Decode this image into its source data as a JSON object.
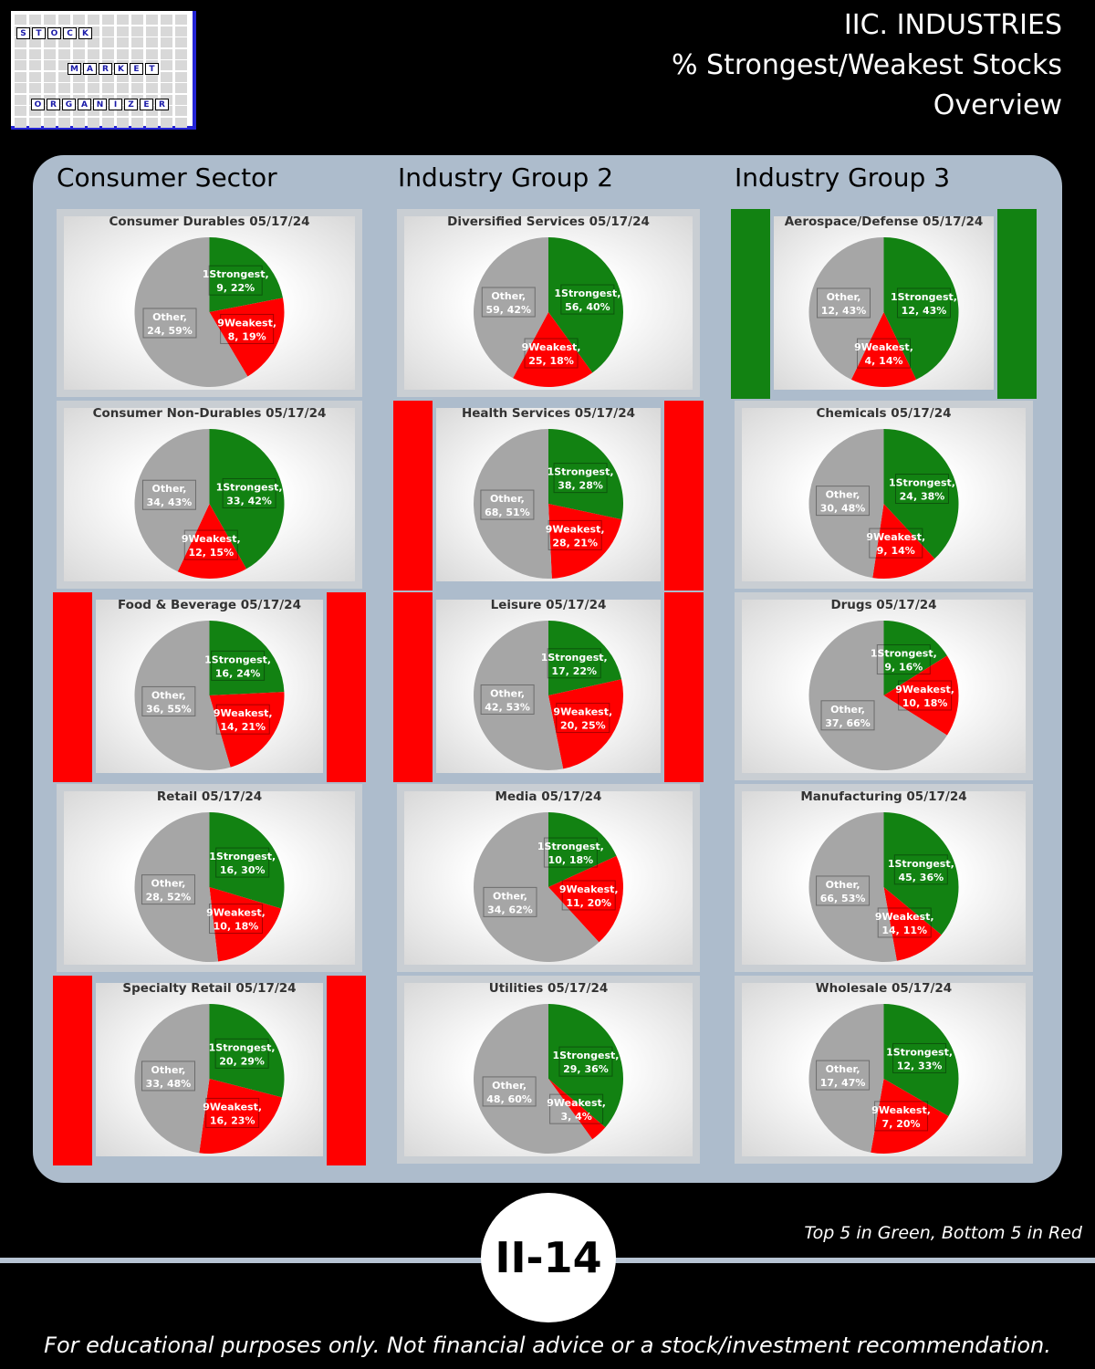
{
  "logo": {
    "rows": [
      [
        "S",
        "T",
        "O",
        "C",
        "K"
      ],
      [
        "M",
        "A",
        "R",
        "K",
        "E",
        "T"
      ],
      [
        "O",
        "R",
        "G",
        "A",
        "N",
        "I",
        "Z",
        "E",
        "R"
      ]
    ]
  },
  "header": {
    "line1": "IIC. INDUSTRIES",
    "line2": "% Strongest/Weakest Stocks",
    "line3": "Overview"
  },
  "columns": [
    "Consumer Sector",
    "Industry Group 2",
    "Industry Group 3"
  ],
  "colors": {
    "strong": "#128212",
    "weak": "#ff0000",
    "other": "#a6a6a6",
    "panel": "#adbccc"
  },
  "footnote": "Top 5 in Green, Bottom 5 in Red",
  "badge": "II-14",
  "disclaimer": "For educational purposes only. Not financial advice or a stock/investment recommendation.",
  "chart_data": [
    {
      "type": "pie",
      "title": "Consumer Durables 05/17/24",
      "highlight": "none",
      "slices": [
        {
          "name": "1Strongest",
          "value": 9,
          "pct": "22%"
        },
        {
          "name": "9Weakest",
          "value": 8,
          "pct": "19%"
        },
        {
          "name": "Other",
          "value": 24,
          "pct": "59%"
        }
      ]
    },
    {
      "type": "pie",
      "title": "Diversified Services 05/17/24",
      "highlight": "none",
      "slices": [
        {
          "name": "1Strongest",
          "value": 56,
          "pct": "40%"
        },
        {
          "name": "9Weakest",
          "value": 25,
          "pct": "18%"
        },
        {
          "name": "Other",
          "value": 59,
          "pct": "42%"
        }
      ]
    },
    {
      "type": "pie",
      "title": "Aerospace/Defense 05/17/24",
      "highlight": "green",
      "slices": [
        {
          "name": "1Strongest",
          "value": 12,
          "pct": "43%"
        },
        {
          "name": "9Weakest",
          "value": 4,
          "pct": "14%"
        },
        {
          "name": "Other",
          "value": 12,
          "pct": "43%"
        }
      ]
    },
    {
      "type": "pie",
      "title": "Consumer Non-Durables 05/17/24",
      "highlight": "none",
      "slices": [
        {
          "name": "1Strongest",
          "value": 33,
          "pct": "42%"
        },
        {
          "name": "9Weakest",
          "value": 12,
          "pct": "15%"
        },
        {
          "name": "Other",
          "value": 34,
          "pct": "43%"
        }
      ]
    },
    {
      "type": "pie",
      "title": "Health Services 05/17/24",
      "highlight": "red",
      "slices": [
        {
          "name": "1Strongest",
          "value": 38,
          "pct": "28%"
        },
        {
          "name": "9Weakest",
          "value": 28,
          "pct": "21%"
        },
        {
          "name": "Other",
          "value": 68,
          "pct": "51%"
        }
      ]
    },
    {
      "type": "pie",
      "title": "Chemicals 05/17/24",
      "highlight": "none",
      "slices": [
        {
          "name": "1Strongest",
          "value": 24,
          "pct": "38%"
        },
        {
          "name": "9Weakest",
          "value": 9,
          "pct": "14%"
        },
        {
          "name": "Other",
          "value": 30,
          "pct": "48%"
        }
      ]
    },
    {
      "type": "pie",
      "title": "Food & Beverage 05/17/24",
      "highlight": "red",
      "slices": [
        {
          "name": "1Strongest",
          "value": 16,
          "pct": "24%"
        },
        {
          "name": "9Weakest",
          "value": 14,
          "pct": "21%"
        },
        {
          "name": "Other",
          "value": 36,
          "pct": "55%"
        }
      ]
    },
    {
      "type": "pie",
      "title": "Leisure 05/17/24",
      "highlight": "red",
      "slices": [
        {
          "name": "1Strongest",
          "value": 17,
          "pct": "22%"
        },
        {
          "name": "9Weakest",
          "value": 20,
          "pct": "25%"
        },
        {
          "name": "Other",
          "value": 42,
          "pct": "53%"
        }
      ]
    },
    {
      "type": "pie",
      "title": "Drugs 05/17/24",
      "highlight": "none",
      "slices": [
        {
          "name": "1Strongest",
          "value": 9,
          "pct": "16%"
        },
        {
          "name": "9Weakest",
          "value": 10,
          "pct": "18%"
        },
        {
          "name": "Other",
          "value": 37,
          "pct": "66%"
        }
      ]
    },
    {
      "type": "pie",
      "title": "Retail 05/17/24",
      "highlight": "none",
      "slices": [
        {
          "name": "1Strongest",
          "value": 16,
          "pct": "30%"
        },
        {
          "name": "9Weakest",
          "value": 10,
          "pct": "18%"
        },
        {
          "name": "Other",
          "value": 28,
          "pct": "52%"
        }
      ]
    },
    {
      "type": "pie",
      "title": "Media 05/17/24",
      "highlight": "none",
      "slices": [
        {
          "name": "1Strongest",
          "value": 10,
          "pct": "18%"
        },
        {
          "name": "9Weakest",
          "value": 11,
          "pct": "20%"
        },
        {
          "name": "Other",
          "value": 34,
          "pct": "62%"
        }
      ]
    },
    {
      "type": "pie",
      "title": "Manufacturing 05/17/24",
      "highlight": "none",
      "slices": [
        {
          "name": "1Strongest",
          "value": 45,
          "pct": "36%"
        },
        {
          "name": "9Weakest",
          "value": 14,
          "pct": "11%"
        },
        {
          "name": "Other",
          "value": 66,
          "pct": "53%"
        }
      ]
    },
    {
      "type": "pie",
      "title": "Specialty Retail 05/17/24",
      "highlight": "red",
      "slices": [
        {
          "name": "1Strongest",
          "value": 20,
          "pct": "29%"
        },
        {
          "name": "9Weakest",
          "value": 16,
          "pct": "23%"
        },
        {
          "name": "Other",
          "value": 33,
          "pct": "48%"
        }
      ]
    },
    {
      "type": "pie",
      "title": "Utilities 05/17/24",
      "highlight": "none",
      "slices": [
        {
          "name": "1Strongest",
          "value": 29,
          "pct": "36%"
        },
        {
          "name": "9Weakest",
          "value": 3,
          "pct": "4%"
        },
        {
          "name": "Other",
          "value": 48,
          "pct": "60%"
        }
      ]
    },
    {
      "type": "pie",
      "title": "Wholesale 05/17/24",
      "highlight": "none",
      "slices": [
        {
          "name": "1Strongest",
          "value": 12,
          "pct": "33%"
        },
        {
          "name": "9Weakest",
          "value": 7,
          "pct": "20%"
        },
        {
          "name": "Other",
          "value": 17,
          "pct": "47%"
        }
      ]
    }
  ]
}
